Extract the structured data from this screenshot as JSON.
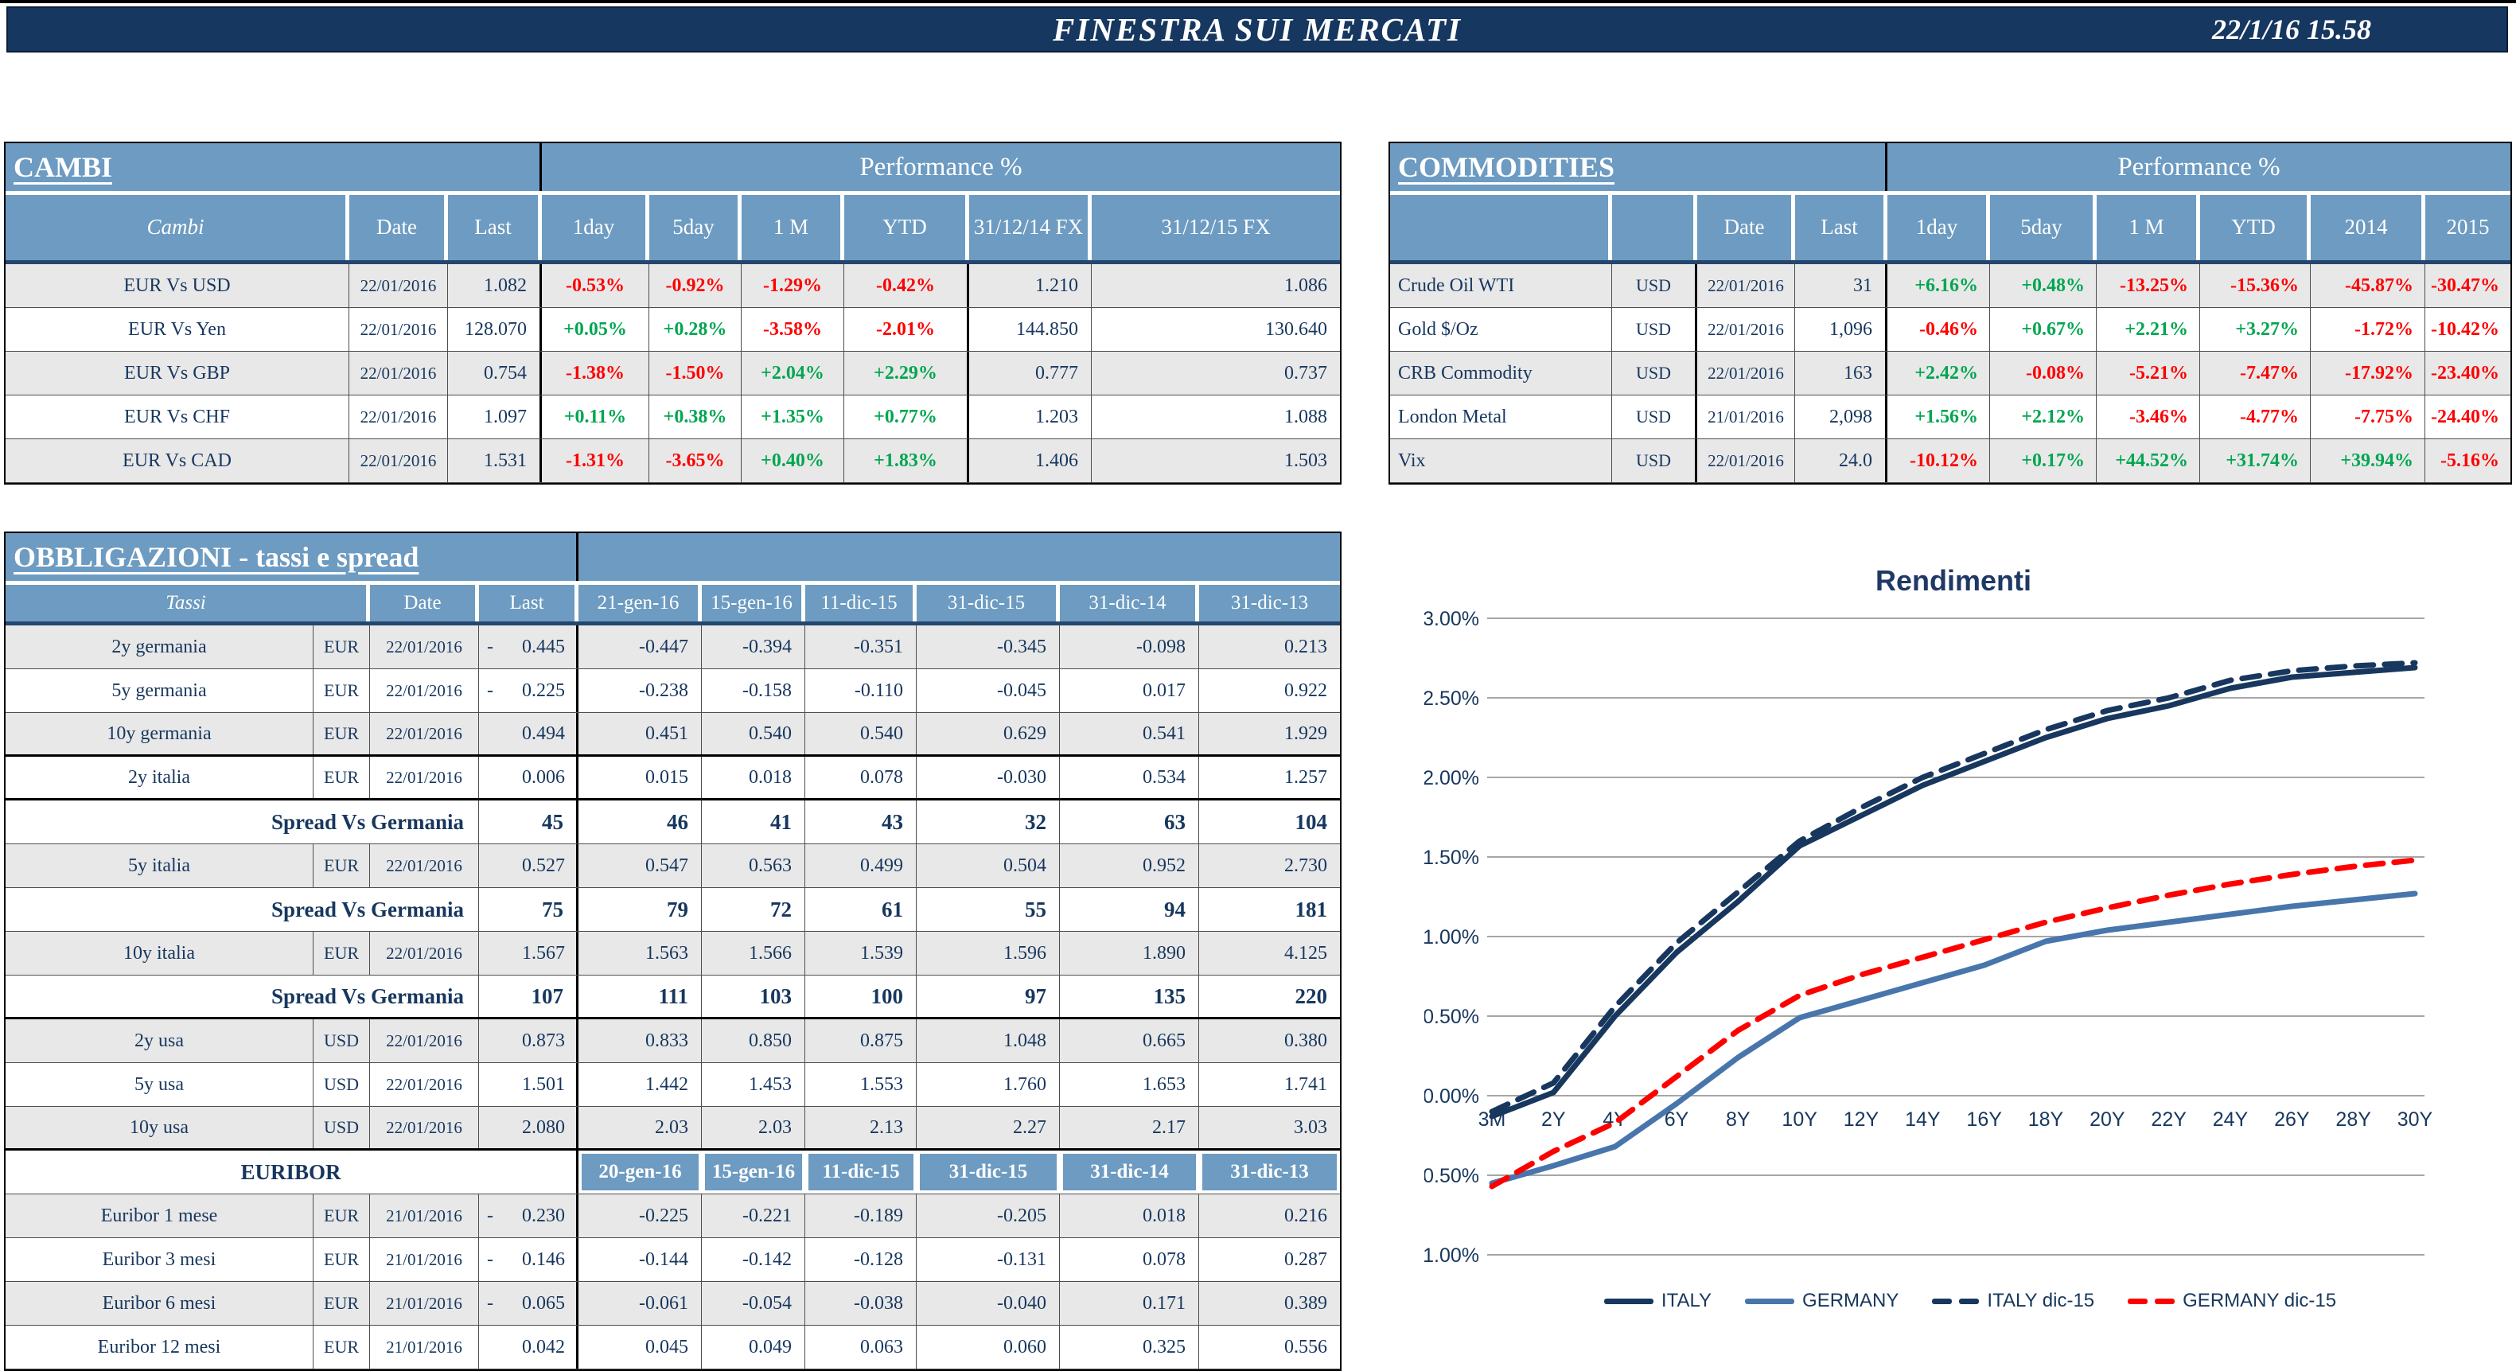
{
  "header": {
    "title": "FINESTRA SUI MERCATI",
    "datetime": "22/1/16 15.58"
  },
  "colors": {
    "navy": "#17375E",
    "header_blue": "#6D9BC1",
    "row_alt": "#E8E8E8",
    "positive": "#00A650",
    "negative": "#FF0000",
    "bar_navy": "#16375F",
    "italy_line": "#17375E",
    "germany_line": "#4876AC",
    "germany_dec_line": "#FF0000",
    "gridline": "#A6A6A6"
  },
  "cambi": {
    "section_title": "CAMBI",
    "performance_title": "Performance %",
    "columns": [
      "Cambi",
      "Date",
      "Last",
      "1day",
      "5day",
      "1 M",
      "YTD",
      "31/12/14 FX",
      "31/12/15  FX"
    ],
    "rows": [
      {
        "name": "EUR Vs USD",
        "date": "22/01/2016",
        "last": "1.082",
        "perf": [
          "-0.53%",
          "-0.92%",
          "-1.29%",
          "-0.42%"
        ],
        "fx14": "1.210",
        "fx15": "1.086"
      },
      {
        "name": "EUR Vs Yen",
        "date": "22/01/2016",
        "last": "128.070",
        "perf": [
          "+0.05%",
          "+0.28%",
          "-3.58%",
          "-2.01%"
        ],
        "fx14": "144.850",
        "fx15": "130.640"
      },
      {
        "name": "EUR Vs GBP",
        "date": "22/01/2016",
        "last": "0.754",
        "perf": [
          "-1.38%",
          "-1.50%",
          "+2.04%",
          "+2.29%"
        ],
        "fx14": "0.777",
        "fx15": "0.737"
      },
      {
        "name": "EUR Vs CHF",
        "date": "22/01/2016",
        "last": "1.097",
        "perf": [
          "+0.11%",
          "+0.38%",
          "+1.35%",
          "+0.77%"
        ],
        "fx14": "1.203",
        "fx15": "1.088"
      },
      {
        "name": "EUR Vs CAD",
        "date": "22/01/2016",
        "last": "1.531",
        "perf": [
          "-1.31%",
          "-3.65%",
          "+0.40%",
          "+1.83%"
        ],
        "fx14": "1.406",
        "fx15": "1.503"
      }
    ]
  },
  "commodities": {
    "section_title": "COMMODITIES",
    "performance_title": "Performance %",
    "columns": [
      "",
      "",
      "Date",
      "Last",
      "1day",
      "5day",
      "1 M",
      "YTD",
      "2014",
      "2015"
    ],
    "rows": [
      {
        "name": "Crude Oil WTI",
        "ccy": "USD",
        "date": "22/01/2016",
        "last": "31",
        "perf": [
          "+6.16%",
          "+0.48%",
          "-13.25%",
          "-15.36%",
          "-45.87%",
          "-30.47%"
        ]
      },
      {
        "name": "Gold $/Oz",
        "ccy": "USD",
        "date": "22/01/2016",
        "last": "1,096",
        "perf": [
          "-0.46%",
          "+0.67%",
          "+2.21%",
          "+3.27%",
          "-1.72%",
          "-10.42%"
        ]
      },
      {
        "name": "CRB Commodity",
        "ccy": "USD",
        "date": "22/01/2016",
        "last": "163",
        "perf": [
          "+2.42%",
          "-0.08%",
          "-5.21%",
          "-7.47%",
          "-17.92%",
          "-23.40%"
        ]
      },
      {
        "name": "London Metal",
        "ccy": "USD",
        "date": "21/01/2016",
        "last": "2,098",
        "perf": [
          "+1.56%",
          "+2.12%",
          "-3.46%",
          "-4.77%",
          "-7.75%",
          "-24.40%"
        ]
      },
      {
        "name": "Vix",
        "ccy": "USD",
        "date": "22/01/2016",
        "last": "24.0",
        "perf": [
          "-10.12%",
          "+0.17%",
          "+44.52%",
          "+31.74%",
          "+39.94%",
          "-5.16%"
        ]
      }
    ]
  },
  "obbligazioni": {
    "section_title": "OBBLIGAZIONI - tassi e spread",
    "columns": [
      "Tassi",
      "Date",
      "Last",
      "21-gen-16",
      "15-gen-16",
      "11-dic-15",
      "31-dic-15",
      "31-dic-14",
      "31-dic-13"
    ],
    "euribor_label": "EURIBOR",
    "euribor_columns": [
      "20-gen-16",
      "15-gen-16",
      "11-dic-15",
      "31-dic-15",
      "31-dic-14",
      "31-dic-13"
    ],
    "rows": [
      {
        "type": "rate",
        "label": "2y germania",
        "ccy": "EUR",
        "date": "22/01/2016",
        "last": "0.445",
        "last_neg": true,
        "hist": [
          "-0.447",
          "-0.394",
          "-0.351",
          "-0.345",
          "-0.098",
          "0.213"
        ],
        "shaded": true
      },
      {
        "type": "rate",
        "label": "5y germania",
        "ccy": "EUR",
        "date": "22/01/2016",
        "last": "0.225",
        "last_neg": true,
        "hist": [
          "-0.238",
          "-0.158",
          "-0.110",
          "-0.045",
          "0.017",
          "0.922"
        ],
        "shaded": false
      },
      {
        "type": "rate",
        "label": "10y germania",
        "ccy": "EUR",
        "date": "22/01/2016",
        "last": "0.494",
        "last_neg": false,
        "hist": [
          "0.451",
          "0.540",
          "0.540",
          "0.629",
          "0.541",
          "1.929"
        ],
        "shaded": true,
        "thick_bottom": true
      },
      {
        "type": "rate",
        "label": "2y italia",
        "ccy": "EUR",
        "date": "22/01/2016",
        "last": "0.006",
        "last_neg": false,
        "hist": [
          "0.015",
          "0.018",
          "0.078",
          "-0.030",
          "0.534",
          "1.257"
        ],
        "shaded": false,
        "thick_bottom": true
      },
      {
        "type": "spread",
        "label": "Spread Vs Germania",
        "last": "45",
        "hist": [
          "46",
          "41",
          "43",
          "32",
          "63",
          "104"
        ]
      },
      {
        "type": "rate",
        "label": "5y italia",
        "ccy": "EUR",
        "date": "22/01/2016",
        "last": "0.527",
        "last_neg": false,
        "hist": [
          "0.547",
          "0.563",
          "0.499",
          "0.504",
          "0.952",
          "2.730"
        ],
        "shaded": true
      },
      {
        "type": "spread",
        "label": "Spread Vs Germania",
        "last": "75",
        "hist": [
          "79",
          "72",
          "61",
          "55",
          "94",
          "181"
        ]
      },
      {
        "type": "rate",
        "label": "10y italia",
        "ccy": "EUR",
        "date": "22/01/2016",
        "last": "1.567",
        "last_neg": false,
        "hist": [
          "1.563",
          "1.566",
          "1.539",
          "1.596",
          "1.890",
          "4.125"
        ],
        "shaded": true
      },
      {
        "type": "spread",
        "label": "Spread Vs Germania",
        "last": "107",
        "hist": [
          "111",
          "103",
          "100",
          "97",
          "135",
          "220"
        ],
        "thick_bottom": true
      },
      {
        "type": "rate",
        "label": "2y usa",
        "ccy": "USD",
        "date": "22/01/2016",
        "last": "0.873",
        "last_neg": false,
        "hist": [
          "0.833",
          "0.850",
          "0.875",
          "1.048",
          "0.665",
          "0.380"
        ],
        "shaded": true
      },
      {
        "type": "rate",
        "label": "5y usa",
        "ccy": "USD",
        "date": "22/01/2016",
        "last": "1.501",
        "last_neg": false,
        "hist": [
          "1.442",
          "1.453",
          "1.553",
          "1.760",
          "1.653",
          "1.741"
        ],
        "shaded": false
      },
      {
        "type": "rate",
        "label": "10y usa",
        "ccy": "USD",
        "date": "22/01/2016",
        "last": "2.080",
        "last_neg": false,
        "hist": [
          "2.03",
          "2.03",
          "2.13",
          "2.27",
          "2.17",
          "3.03"
        ],
        "shaded": true,
        "thick_bottom": true
      },
      {
        "type": "euribor_header"
      },
      {
        "type": "rate",
        "label": "Euribor 1 mese",
        "ccy": "EUR",
        "date": "21/01/2016",
        "last": "0.230",
        "last_neg": true,
        "hist": [
          "-0.225",
          "-0.221",
          "-0.189",
          "-0.205",
          "0.018",
          "0.216"
        ],
        "shaded": true
      },
      {
        "type": "rate",
        "label": "Euribor 3 mesi",
        "ccy": "EUR",
        "date": "21/01/2016",
        "last": "0.146",
        "last_neg": true,
        "hist": [
          "-0.144",
          "-0.142",
          "-0.128",
          "-0.131",
          "0.078",
          "0.287"
        ],
        "shaded": false
      },
      {
        "type": "rate",
        "label": "Euribor 6 mesi",
        "ccy": "EUR",
        "date": "21/01/2016",
        "last": "0.065",
        "last_neg": true,
        "hist": [
          "-0.061",
          "-0.054",
          "-0.038",
          "-0.040",
          "0.171",
          "0.389"
        ],
        "shaded": true
      },
      {
        "type": "rate",
        "label": "Euribor 12 mesi",
        "ccy": "EUR",
        "date": "21/01/2016",
        "last": "0.042",
        "last_neg": false,
        "hist": [
          "0.045",
          "0.049",
          "0.063",
          "0.060",
          "0.325",
          "0.556"
        ],
        "shaded": false
      }
    ]
  },
  "chart_data": {
    "type": "line",
    "title": "Rendimenti",
    "xlabel": "",
    "ylabel": "",
    "ylim": [
      -1.0,
      3.0
    ],
    "grid": true,
    "legend_position": "bottom",
    "y_ticks": [
      "3.00%",
      "2.50%",
      "2.00%",
      "1.50%",
      "1.00%",
      "0.50%",
      "0.00%",
      "-0.50%",
      "-1.00%"
    ],
    "y_tick_values": [
      3.0,
      2.5,
      2.0,
      1.5,
      1.0,
      0.5,
      0.0,
      -0.5,
      -1.0
    ],
    "categories": [
      "3M",
      "2Y",
      "4Y",
      "6Y",
      "8Y",
      "10Y",
      "12Y",
      "14Y",
      "16Y",
      "18Y",
      "20Y",
      "22Y",
      "24Y",
      "26Y",
      "28Y",
      "30Y"
    ],
    "series": [
      {
        "name": "ITALY",
        "style": "solid",
        "color": "#17375E",
        "values": [
          -0.13,
          0.02,
          0.5,
          0.9,
          1.22,
          1.57,
          1.76,
          1.95,
          2.1,
          2.25,
          2.37,
          2.45,
          2.56,
          2.63,
          2.66,
          2.69
        ]
      },
      {
        "name": "GERMANY",
        "style": "solid",
        "color": "#4876AC",
        "values": [
          -0.55,
          -0.44,
          -0.32,
          -0.05,
          0.24,
          0.49,
          0.6,
          0.71,
          0.82,
          0.97,
          1.04,
          1.09,
          1.14,
          1.19,
          1.23,
          1.27
        ]
      },
      {
        "name": "ITALY dic-15",
        "style": "dashed",
        "color": "#17375E",
        "values": [
          -0.1,
          0.08,
          0.56,
          0.96,
          1.28,
          1.6,
          1.81,
          2.0,
          2.15,
          2.3,
          2.42,
          2.5,
          2.61,
          2.67,
          2.7,
          2.72
        ]
      },
      {
        "name": "GERMANY dic-15",
        "style": "dashed",
        "color": "#FF0000",
        "values": [
          -0.57,
          -0.35,
          -0.17,
          0.12,
          0.41,
          0.63,
          0.76,
          0.87,
          0.98,
          1.09,
          1.18,
          1.26,
          1.33,
          1.39,
          1.44,
          1.48
        ]
      }
    ]
  }
}
